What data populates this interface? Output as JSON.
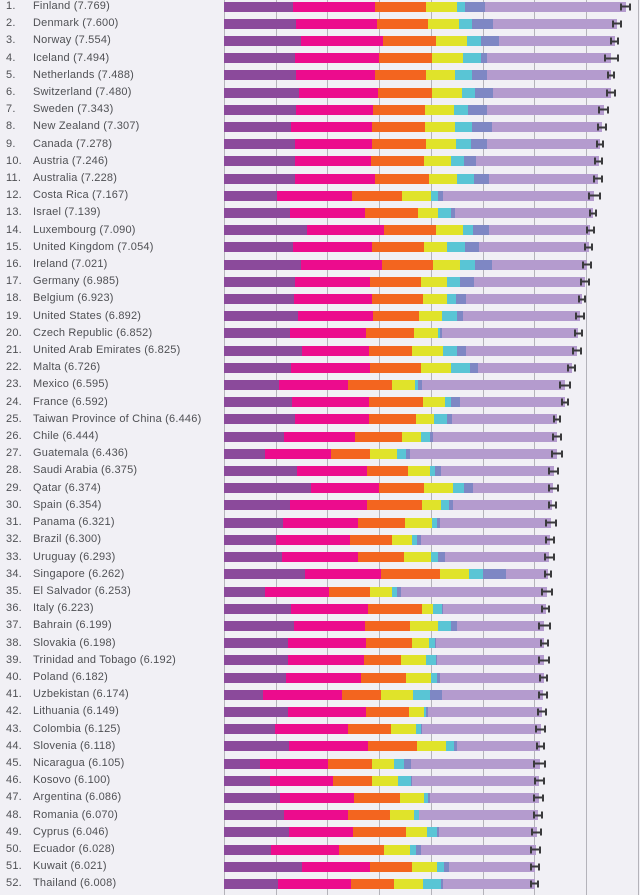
{
  "chart_data": {
    "type": "bar",
    "orientation": "horizontal-stacked",
    "title": "",
    "legend_visible": false,
    "axis": {
      "min": 0,
      "max": 8,
      "gridline_interval": 1,
      "gridlines": [
        0,
        1,
        2,
        3,
        4,
        5,
        6,
        7,
        8
      ],
      "tick_labels_visible": false
    },
    "colors": {
      "background": "#f1f0f5",
      "gridline": "#b4b3ba",
      "whisker": "#3a3a3c",
      "text": "#4f5054"
    },
    "series": [
      {
        "key": "gdp-per-capita",
        "color": "#8b4a9b"
      },
      {
        "key": "social-support",
        "color": "#ec0c8d"
      },
      {
        "key": "healthy-life-expectancy",
        "color": "#f3651f"
      },
      {
        "key": "freedom",
        "color": "#e0e32a"
      },
      {
        "key": "generosity",
        "color": "#59c5d5"
      },
      {
        "key": "perceptions-of-corruption",
        "color": "#7e87c4"
      },
      {
        "key": "dystopia-plus-residual",
        "color": "#b49bce"
      }
    ],
    "countries": [
      {
        "rank_label": "1.",
        "name": "Finland",
        "score": "7.769",
        "label": "Finland (7.769)",
        "values": [
          1.34,
          1.587,
          0.986,
          0.596,
          0.153,
          0.393,
          2.714
        ],
        "ci": 0.1
      },
      {
        "rank_label": "2.",
        "name": "Denmark",
        "score": "7.600",
        "label": "Denmark (7.600)",
        "values": [
          1.383,
          1.573,
          0.996,
          0.592,
          0.252,
          0.41,
          2.394
        ],
        "ci": 0.09
      },
      {
        "rank_label": "3.",
        "name": "Norway",
        "score": "7.554",
        "label": "Norway (7.554)",
        "values": [
          1.488,
          1.582,
          1.028,
          0.603,
          0.271,
          0.341,
          2.241
        ],
        "ci": 0.09
      },
      {
        "rank_label": "4.",
        "name": "Iceland",
        "score": "7.494",
        "label": "Iceland (7.494)",
        "values": [
          1.38,
          1.624,
          1.026,
          0.591,
          0.354,
          0.118,
          2.401
        ],
        "ci": 0.15
      },
      {
        "rank_label": "5.",
        "name": "Netherlands",
        "score": "7.488",
        "label": "Netherlands (7.488)",
        "values": [
          1.396,
          1.522,
          0.999,
          0.557,
          0.322,
          0.298,
          2.394
        ],
        "ci": 0.08
      },
      {
        "rank_label": "6.",
        "name": "Switzerland",
        "score": "7.480",
        "label": "Switzerland (7.480)",
        "values": [
          1.452,
          1.526,
          1.052,
          0.572,
          0.263,
          0.343,
          2.272
        ],
        "ci": 0.1
      },
      {
        "rank_label": "7.",
        "name": "Sweden",
        "score": "7.343",
        "label": "Sweden (7.343)",
        "values": [
          1.387,
          1.487,
          1.009,
          0.574,
          0.267,
          0.373,
          2.246
        ],
        "ci": 0.1
      },
      {
        "rank_label": "8.",
        "name": "New Zealand",
        "score": "7.307",
        "label": "New Zealand (7.307)",
        "values": [
          1.303,
          1.557,
          1.026,
          0.585,
          0.33,
          0.38,
          2.126
        ],
        "ci": 0.1
      },
      {
        "rank_label": "9.",
        "name": "Canada",
        "score": "7.278",
        "label": "Canada (7.278)",
        "values": [
          1.365,
          1.505,
          1.039,
          0.584,
          0.285,
          0.308,
          2.192
        ],
        "ci": 0.08
      },
      {
        "rank_label": "10.",
        "name": "Austria",
        "score": "7.246",
        "label": "Austria (7.246)",
        "values": [
          1.376,
          1.475,
          1.016,
          0.532,
          0.244,
          0.226,
          2.377
        ],
        "ci": 0.09
      },
      {
        "rank_label": "11.",
        "name": "Australia",
        "score": "7.228",
        "label": "Australia (7.228)",
        "values": [
          1.372,
          1.548,
          1.036,
          0.557,
          0.332,
          0.29,
          2.093
        ],
        "ci": 0.1
      },
      {
        "rank_label": "12.",
        "name": "Costa Rica",
        "score": "7.167",
        "label": "Costa Rica (7.167)",
        "values": [
          1.034,
          1.441,
          0.963,
          0.558,
          0.144,
          0.093,
          2.934
        ],
        "ci": 0.13
      },
      {
        "rank_label": "13.",
        "name": "Israel",
        "score": "7.139",
        "label": "Israel (7.139)",
        "values": [
          1.276,
          1.455,
          1.029,
          0.371,
          0.261,
          0.082,
          2.665
        ],
        "ci": 0.08
      },
      {
        "rank_label": "14.",
        "name": "Luxembourg",
        "score": "7.090",
        "label": "Luxembourg (7.090)",
        "values": [
          1.609,
          1.479,
          1.012,
          0.526,
          0.194,
          0.316,
          1.954
        ],
        "ci": 0.09
      },
      {
        "rank_label": "15.",
        "name": "United Kingdom",
        "score": "7.054",
        "label": "United Kingdom (7.054)",
        "values": [
          1.333,
          1.538,
          0.996,
          0.45,
          0.348,
          0.278,
          2.111
        ],
        "ci": 0.09
      },
      {
        "rank_label": "16.",
        "name": "Ireland",
        "score": "7.021",
        "label": "Ireland (7.021)",
        "values": [
          1.499,
          1.553,
          0.999,
          0.516,
          0.298,
          0.31,
          1.846
        ],
        "ci": 0.09
      },
      {
        "rank_label": "17.",
        "name": "Germany",
        "score": "6.985",
        "label": "Germany (6.985)",
        "values": [
          1.373,
          1.454,
          0.987,
          0.495,
          0.261,
          0.265,
          2.15
        ],
        "ci": 0.09
      },
      {
        "rank_label": "18.",
        "name": "Belgium",
        "score": "6.923",
        "label": "Belgium (6.923)",
        "values": [
          1.356,
          1.504,
          0.986,
          0.473,
          0.16,
          0.21,
          2.234
        ],
        "ci": 0.08
      },
      {
        "rank_label": "19.",
        "name": "United States",
        "score": "6.892",
        "label": "United States (6.892)",
        "values": [
          1.433,
          1.457,
          0.874,
          0.454,
          0.28,
          0.128,
          2.266
        ],
        "ci": 0.1
      },
      {
        "rank_label": "20.",
        "name": "Czech Republic",
        "score": "6.852",
        "label": "Czech Republic (6.852)",
        "values": [
          1.269,
          1.487,
          0.92,
          0.457,
          0.046,
          0.036,
          2.637
        ],
        "ci": 0.09
      },
      {
        "rank_label": "21.",
        "name": "United Arab Emirates",
        "score": "6.825",
        "label": "United Arab Emirates (6.825)",
        "values": [
          1.503,
          1.31,
          0.825,
          0.598,
          0.262,
          0.182,
          2.145
        ],
        "ci": 0.1
      },
      {
        "rank_label": "22.",
        "name": "Malta",
        "score": "6.726",
        "label": "Malta (6.726)",
        "values": [
          1.3,
          1.52,
          0.999,
          0.564,
          0.375,
          0.151,
          1.817
        ],
        "ci": 0.09
      },
      {
        "rank_label": "23.",
        "name": "Mexico",
        "score": "6.595",
        "label": "Mexico (6.595)",
        "values": [
          1.07,
          1.323,
          0.861,
          0.433,
          0.074,
          0.073,
          2.761
        ],
        "ci": 0.12
      },
      {
        "rank_label": "24.",
        "name": "France",
        "score": "6.592",
        "label": "France (6.592)",
        "values": [
          1.324,
          1.472,
          1.045,
          0.436,
          0.111,
          0.183,
          2.021
        ],
        "ci": 0.08
      },
      {
        "rank_label": "25.",
        "name": "Taiwan Province of China",
        "score": "6.446",
        "label": "Taiwan Province of China (6.446)",
        "values": [
          1.368,
          1.43,
          0.914,
          0.351,
          0.242,
          0.097,
          2.044
        ],
        "ci": 0.08
      },
      {
        "rank_label": "26.",
        "name": "Chile",
        "score": "6.444",
        "label": "Chile (6.444)",
        "values": [
          1.159,
          1.369,
          0.92,
          0.357,
          0.187,
          0.056,
          2.396
        ],
        "ci": 0.1
      },
      {
        "rank_label": "27.",
        "name": "Guatemala",
        "score": "6.436",
        "label": "Guatemala (6.436)",
        "values": [
          0.8,
          1.269,
          0.746,
          0.535,
          0.175,
          0.078,
          2.833
        ],
        "ci": 0.12
      },
      {
        "rank_label": "28.",
        "name": "Saudi Arabia",
        "score": "6.375",
        "label": "Saudi Arabia (6.375)",
        "values": [
          1.403,
          1.357,
          0.795,
          0.439,
          0.08,
          0.132,
          2.169
        ],
        "ci": 0.11
      },
      {
        "rank_label": "29.",
        "name": "Qatar",
        "score": "6.374",
        "label": "Qatar (6.374)",
        "values": [
          1.684,
          1.313,
          0.871,
          0.555,
          0.22,
          0.167,
          1.564
        ],
        "ci": 0.11
      },
      {
        "rank_label": "30.",
        "name": "Spain",
        "score": "6.354",
        "label": "Spain (6.354)",
        "values": [
          1.286,
          1.484,
          1.062,
          0.362,
          0.153,
          0.079,
          1.928
        ],
        "ci": 0.08
      },
      {
        "rank_label": "31.",
        "name": "Panama",
        "score": "6.321",
        "label": "Panama (6.321)",
        "values": [
          1.149,
          1.442,
          0.91,
          0.516,
          0.109,
          0.054,
          2.141
        ],
        "ci": 0.12
      },
      {
        "rank_label": "32.",
        "name": "Brazil",
        "score": "6.300",
        "label": "Brazil (6.300)",
        "values": [
          1.004,
          1.439,
          0.802,
          0.39,
          0.099,
          0.086,
          2.48
        ],
        "ci": 0.1
      },
      {
        "rank_label": "33.",
        "name": "Uruguay",
        "score": "6.293",
        "label": "Uruguay (6.293)",
        "values": [
          1.124,
          1.465,
          0.891,
          0.523,
          0.127,
          0.15,
          2.013
        ],
        "ci": 0.1
      },
      {
        "rank_label": "34.",
        "name": "Singapore",
        "score": "6.262",
        "label": "Singapore (6.262)",
        "values": [
          1.572,
          1.463,
          1.141,
          0.556,
          0.271,
          0.453,
          0.806
        ],
        "ci": 0.08
      },
      {
        "rank_label": "35.",
        "name": "El Salvador",
        "score": "6.253",
        "label": "El Salvador (6.253)",
        "values": [
          0.794,
          1.242,
          0.789,
          0.43,
          0.093,
          0.074,
          2.831
        ],
        "ci": 0.12
      },
      {
        "rank_label": "36.",
        "name": "Italy",
        "score": "6.223",
        "label": "Italy (6.223)",
        "values": [
          1.294,
          1.488,
          1.039,
          0.231,
          0.158,
          0.03,
          1.983
        ],
        "ci": 0.09
      },
      {
        "rank_label": "37.",
        "name": "Bahrain",
        "score": "6.199",
        "label": "Bahrain (6.199)",
        "values": [
          1.362,
          1.368,
          0.871,
          0.536,
          0.255,
          0.11,
          1.697
        ],
        "ci": 0.12
      },
      {
        "rank_label": "38.",
        "name": "Slovakia",
        "score": "6.198",
        "label": "Slovakia (6.198)",
        "values": [
          1.246,
          1.504,
          0.881,
          0.334,
          0.121,
          0.014,
          2.098
        ],
        "ci": 0.09
      },
      {
        "rank_label": "39.",
        "name": "Trinidad and Tobago",
        "score": "6.192",
        "label": "Trinidad and Tobago (6.192)",
        "values": [
          1.231,
          1.477,
          0.713,
          0.489,
          0.185,
          0.016,
          2.081
        ],
        "ci": 0.12
      },
      {
        "rank_label": "40.",
        "name": "Poland",
        "score": "6.182",
        "label": "Poland (6.182)",
        "values": [
          1.206,
          1.438,
          0.884,
          0.483,
          0.117,
          0.05,
          2.004
        ],
        "ci": 0.08
      },
      {
        "rank_label": "41.",
        "name": "Uzbekistan",
        "score": "6.174",
        "label": "Uzbekistan (6.174)",
        "values": [
          0.745,
          1.529,
          0.756,
          0.631,
          0.322,
          0.24,
          1.951
        ],
        "ci": 0.1
      },
      {
        "rank_label": "42.",
        "name": "Lithuania",
        "score": "6.149",
        "label": "Lithuania (6.149)",
        "values": [
          1.238,
          1.515,
          0.818,
          0.291,
          0.043,
          0.042,
          2.202
        ],
        "ci": 0.09
      },
      {
        "rank_label": "43.",
        "name": "Colombia",
        "score": "6.125",
        "label": "Colombia (6.125)",
        "values": [
          0.985,
          1.41,
          0.841,
          0.47,
          0.099,
          0.034,
          2.286
        ],
        "ci": 0.1
      },
      {
        "rank_label": "44.",
        "name": "Slovenia",
        "score": "6.118",
        "label": "Slovenia (6.118)",
        "values": [
          1.258,
          1.523,
          0.953,
          0.564,
          0.144,
          0.057,
          1.619
        ],
        "ci": 0.09
      },
      {
        "rank_label": "45.",
        "name": "Nicaragua",
        "score": "6.105",
        "label": "Nicaragua (6.105)",
        "values": [
          0.694,
          1.325,
          0.835,
          0.435,
          0.2,
          0.127,
          2.489
        ],
        "ci": 0.12
      },
      {
        "rank_label": "46.",
        "name": "Kosovo",
        "score": "6.100",
        "label": "Kosovo (6.100)",
        "values": [
          0.882,
          1.232,
          0.758,
          0.489,
          0.262,
          0.006,
          2.471
        ],
        "ci": 0.1
      },
      {
        "rank_label": "47.",
        "name": "Argentina",
        "score": "6.086",
        "label": "Argentina (6.086)",
        "values": [
          1.092,
          1.432,
          0.881,
          0.471,
          0.066,
          0.05,
          2.094
        ],
        "ci": 0.1
      },
      {
        "rank_label": "48.",
        "name": "Romania",
        "score": "6.070",
        "label": "Romania (6.070)",
        "values": [
          1.162,
          1.232,
          0.825,
          0.462,
          0.083,
          0.005,
          2.301
        ],
        "ci": 0.1
      },
      {
        "rank_label": "49.",
        "name": "Cyprus",
        "score": "6.046",
        "label": "Cyprus (6.046)",
        "values": [
          1.263,
          1.223,
          1.042,
          0.406,
          0.19,
          0.041,
          1.881
        ],
        "ci": 0.11
      },
      {
        "rank_label": "50.",
        "name": "Ecuador",
        "score": "6.028",
        "label": "Ecuador (6.028)",
        "values": [
          0.912,
          1.312,
          0.868,
          0.498,
          0.126,
          0.087,
          2.225
        ],
        "ci": 0.1
      },
      {
        "rank_label": "51.",
        "name": "Kuwait",
        "score": "6.021",
        "label": "Kuwait (6.021)",
        "values": [
          1.5,
          1.319,
          0.808,
          0.493,
          0.142,
          0.097,
          1.662
        ],
        "ci": 0.1
      },
      {
        "rank_label": "52.",
        "name": "Thailand",
        "score": "6.008",
        "label": "Thailand (6.008)",
        "values": [
          1.05,
          1.409,
          0.828,
          0.557,
          0.359,
          0.028,
          1.777
        ],
        "ci": 0.09
      }
    ]
  }
}
